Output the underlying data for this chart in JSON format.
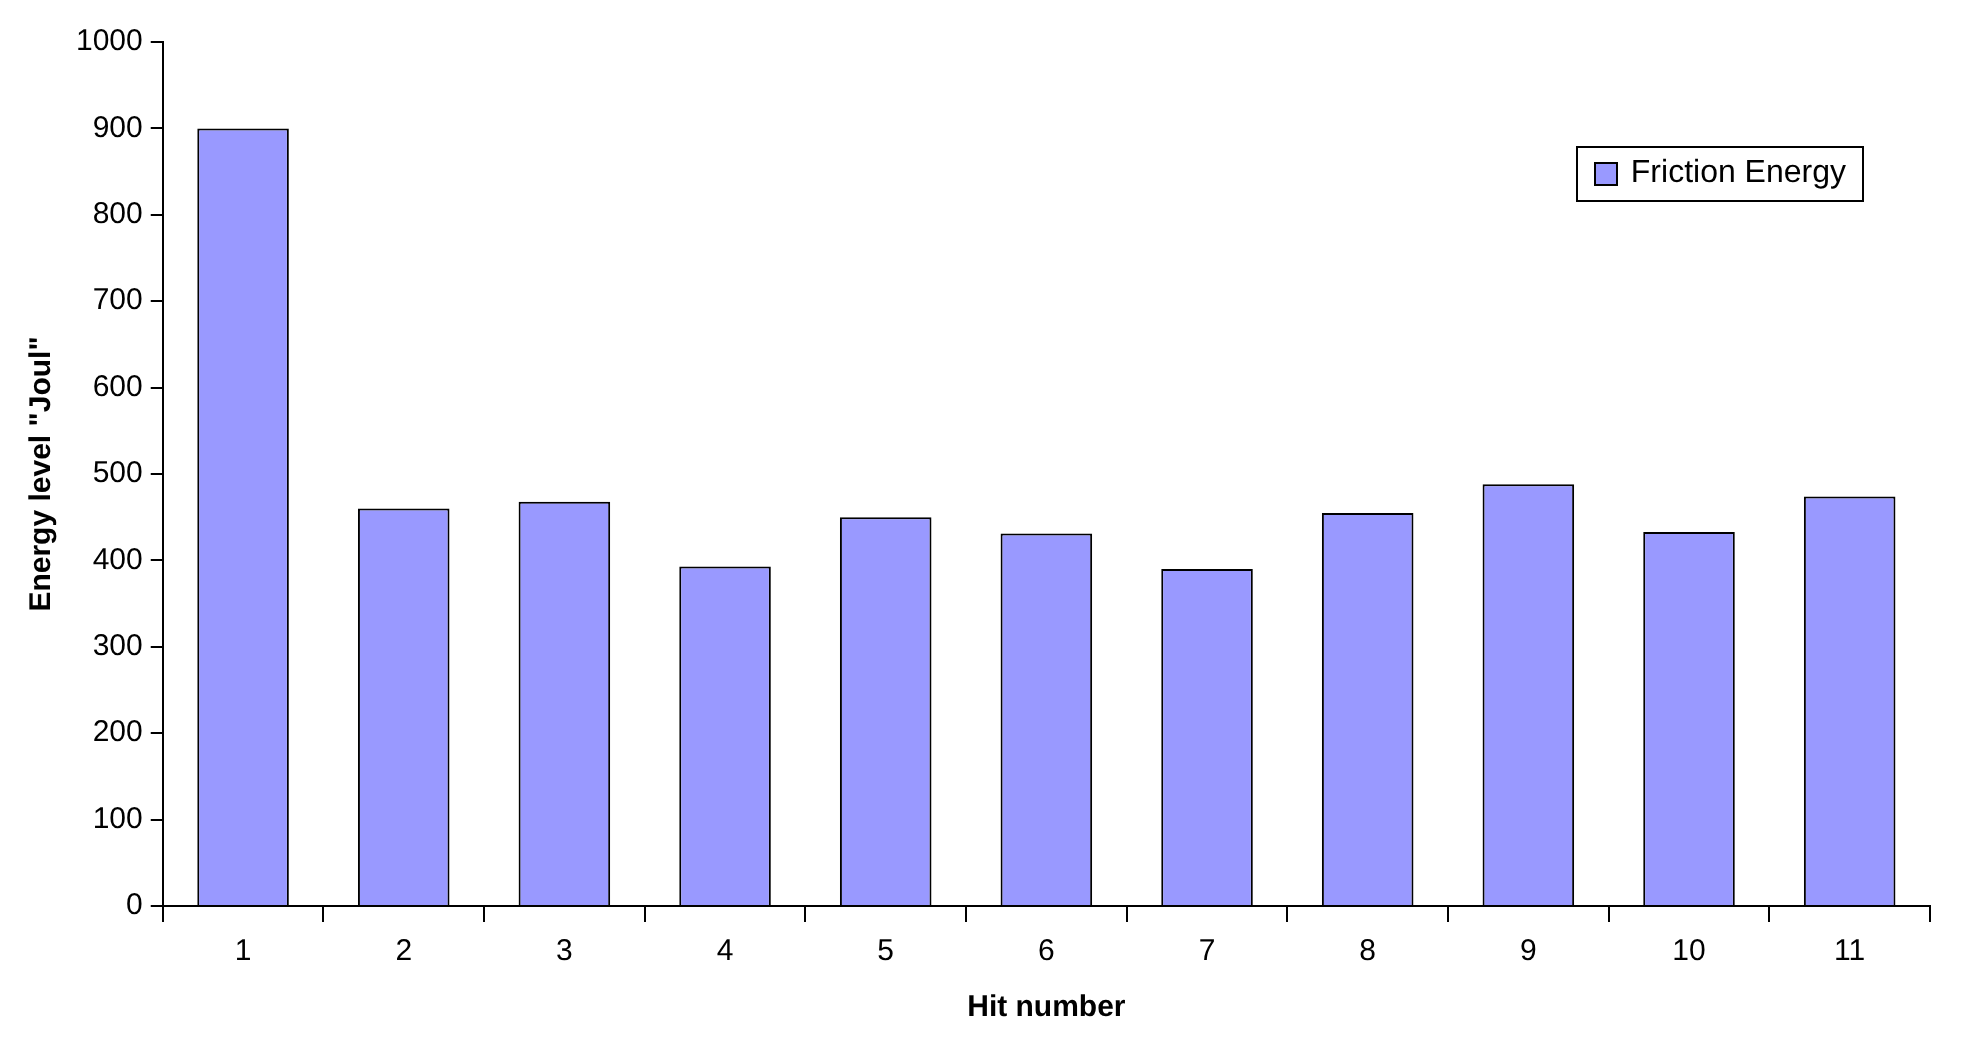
{
  "chart_data": {
    "type": "bar",
    "xlabel": "Hit number",
    "ylabel": "Energy level \"Joul\"",
    "categories": [
      "1",
      "2",
      "3",
      "4",
      "5",
      "6",
      "7",
      "8",
      "9",
      "10",
      "11"
    ],
    "series": [
      {
        "name": "Friction Energy",
        "color": "#9999ff",
        "values": [
          900,
          460,
          468,
          393,
          450,
          431,
          390,
          455,
          488,
          433,
          474
        ]
      }
    ],
    "ylim": [
      0,
      1000
    ],
    "yticks": [
      0,
      100,
      200,
      300,
      400,
      500,
      600,
      700,
      800,
      900,
      1000
    ],
    "grid": false,
    "legend": "top right"
  }
}
